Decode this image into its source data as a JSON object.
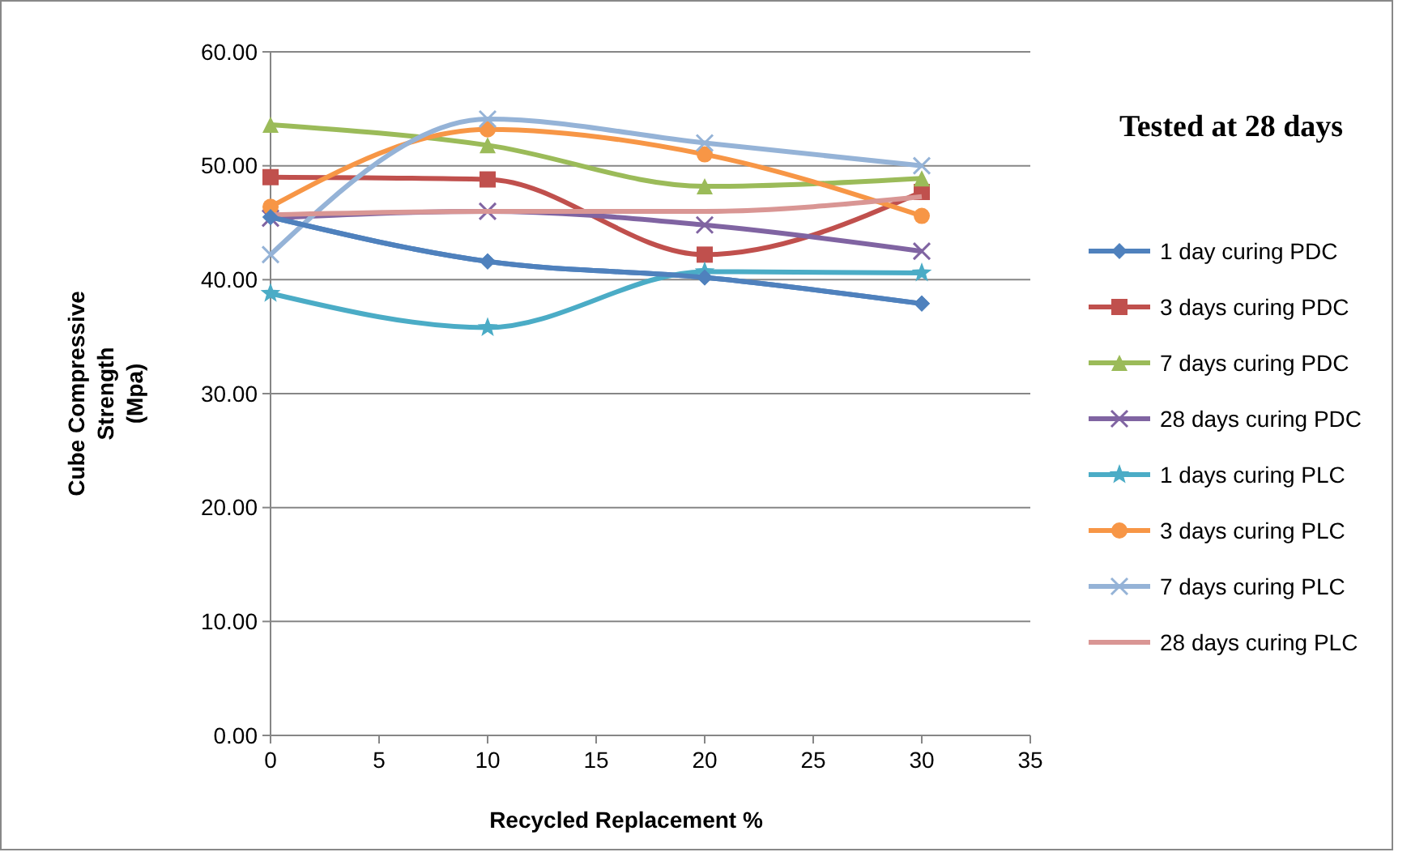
{
  "chart_data": {
    "type": "line",
    "legend_title": "Tested at 28 days",
    "xlabel": "Recycled Replacement %",
    "ylabel": "Cube Compressive Strength (Mpa)",
    "x": [
      0,
      10,
      20,
      30
    ],
    "xlim": [
      0,
      35
    ],
    "xticks": [
      0,
      5,
      10,
      15,
      20,
      25,
      30,
      35
    ],
    "ylim": [
      0,
      60
    ],
    "yticks": [
      {
        "value": 0,
        "label": "0.00"
      },
      {
        "value": 10,
        "label": "10.00"
      },
      {
        "value": 20,
        "label": "20.00"
      },
      {
        "value": 30,
        "label": "30.00"
      },
      {
        "value": 40,
        "label": "40.00"
      },
      {
        "value": 50,
        "label": "50.00"
      },
      {
        "value": 60,
        "label": "60.00"
      }
    ],
    "grid": "y",
    "legend": "right",
    "series": [
      {
        "name": "1 day curing PDC",
        "color": "#4f81bd",
        "marker": "diamond",
        "values": [
          45.5,
          41.6,
          40.2,
          37.9
        ]
      },
      {
        "name": "3 days curing PDC",
        "color": "#c0504d",
        "marker": "square",
        "values": [
          49.0,
          48.8,
          42.2,
          47.7
        ]
      },
      {
        "name": "7 days curing PDC",
        "color": "#9bbb59",
        "marker": "triangle",
        "values": [
          53.6,
          51.8,
          48.2,
          48.9
        ]
      },
      {
        "name": "28 days curing PDC",
        "color": "#8064a2",
        "marker": "cross",
        "values": [
          45.4,
          46.0,
          44.8,
          42.5
        ]
      },
      {
        "name": "1 days curing PLC",
        "color": "#4bacc6",
        "marker": "star",
        "values": [
          38.8,
          35.8,
          40.7,
          40.6
        ]
      },
      {
        "name": "3 days curing PLC",
        "color": "#f79646",
        "marker": "circle",
        "values": [
          46.4,
          53.2,
          51.0,
          45.6
        ]
      },
      {
        "name": "7 days curing PLC",
        "color": "#95b3d7",
        "marker": "cross",
        "values": [
          42.2,
          54.1,
          52.0,
          50.0
        ]
      },
      {
        "name": "28 days curing PLC",
        "color": "#d99694",
        "marker": "none",
        "values": [
          45.7,
          46.0,
          46.0,
          47.3
        ]
      }
    ]
  }
}
